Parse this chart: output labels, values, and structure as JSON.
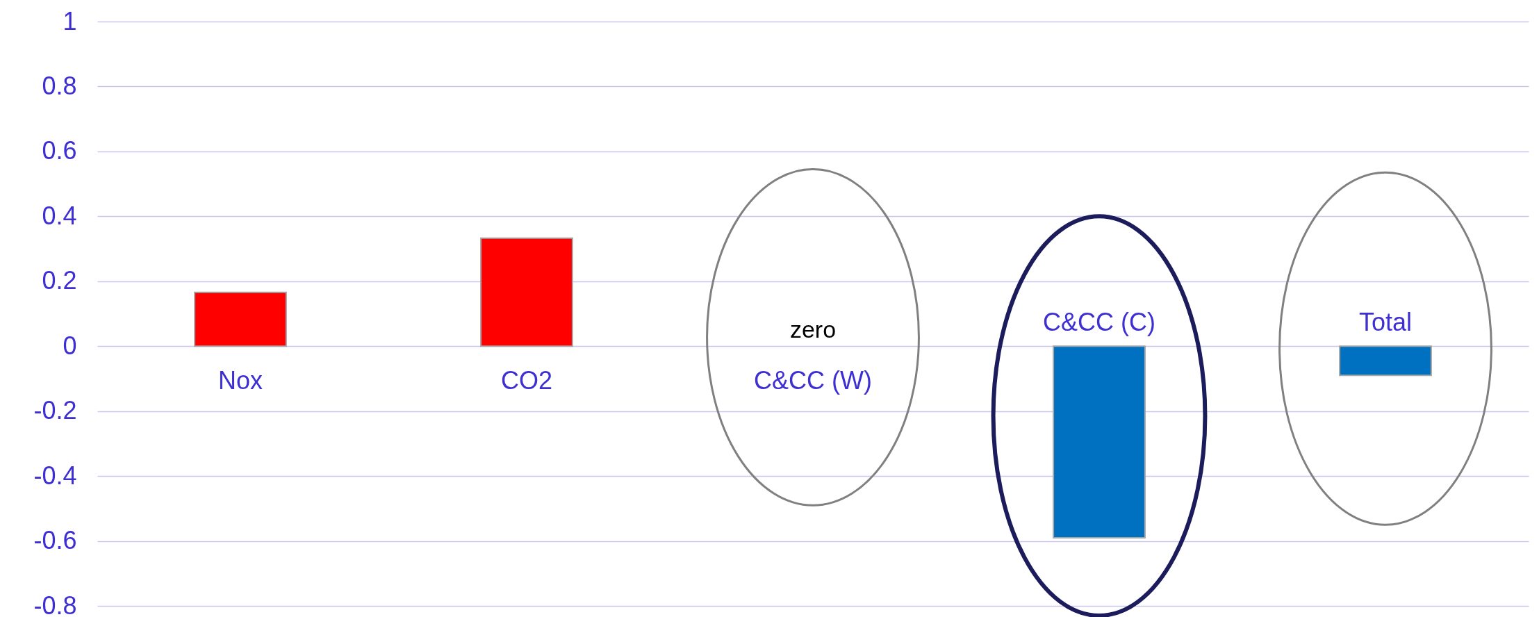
{
  "chart_data": {
    "type": "bar",
    "categories": [
      "Nox",
      "CO2",
      "C&CC (W)",
      "C&CC (C)",
      "Total"
    ],
    "values": [
      0.166,
      0.333,
      0,
      -0.59,
      -0.09
    ],
    "colors": [
      "#ff0000",
      "#ff0000",
      "#0070c0",
      "#0070c0",
      "#0070c0"
    ],
    "ylim": [
      -0.8,
      1
    ],
    "yticks": [
      -0.8,
      -0.6,
      -0.4,
      -0.2,
      0,
      0.2,
      0.4,
      0.6,
      0.8,
      1
    ],
    "grid": "y",
    "annotations": [
      {
        "text": "zero",
        "x": "C&CC (W)",
        "y": 0
      }
    ]
  }
}
